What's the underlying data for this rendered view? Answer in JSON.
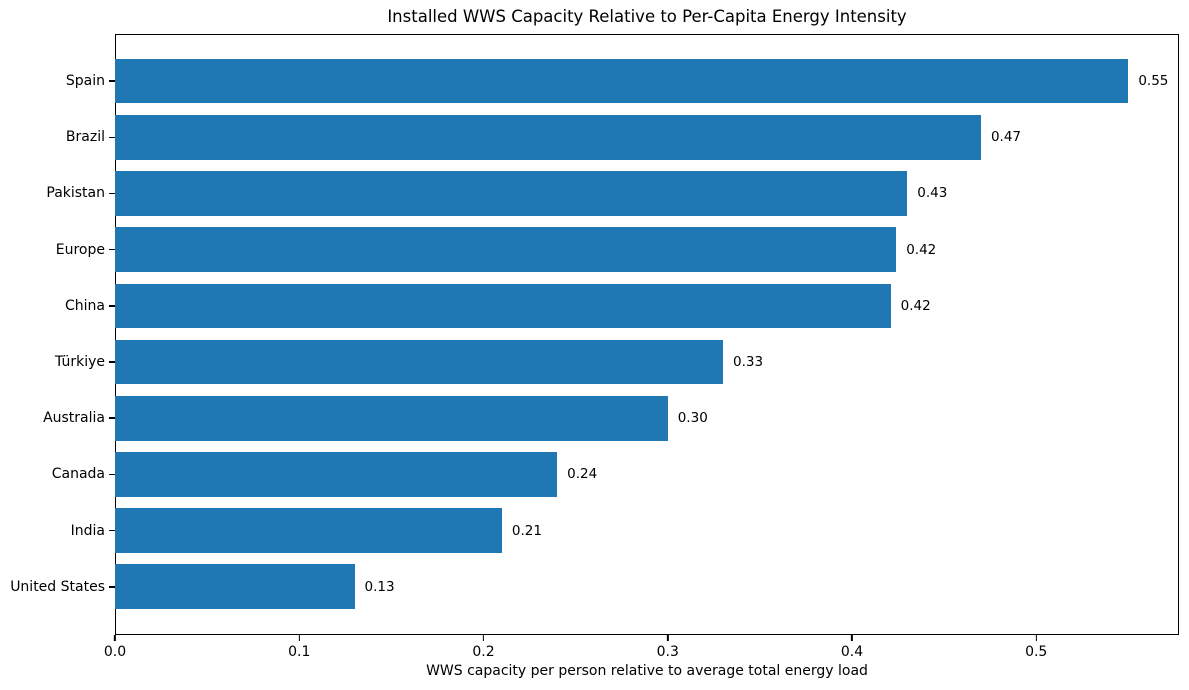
{
  "title": "Installed WWS Capacity Relative to Per-Capita Energy Intensity",
  "colors": {
    "bar": "#1f77b4",
    "text": "#000000",
    "background": "#ffffff",
    "axis": "#000000"
  },
  "chart_data": {
    "type": "bar",
    "orientation": "horizontal",
    "title": "Installed WWS Capacity Relative to Per-Capita Energy Intensity",
    "xlabel": "WWS capacity per person relative to average total energy load",
    "ylabel": "",
    "categories": [
      "Spain",
      "Brazil",
      "Pakistan",
      "Europe",
      "China",
      "Türkiye",
      "Australia",
      "Canada",
      "India",
      "United States"
    ],
    "values": [
      0.55,
      0.47,
      0.43,
      0.424,
      0.421,
      0.33,
      0.3,
      0.24,
      0.21,
      0.13
    ],
    "value_labels": [
      "0.55",
      "0.47",
      "0.43",
      "0.42",
      "0.42",
      "0.33",
      "0.30",
      "0.24",
      "0.21",
      "0.13"
    ],
    "xlim": [
      0,
      0.5775
    ],
    "xticks": [
      0.0,
      0.1,
      0.2,
      0.3,
      0.4,
      0.5
    ],
    "xtick_labels": [
      "0.0",
      "0.1",
      "0.2",
      "0.3",
      "0.4",
      "0.5"
    ],
    "bar_color": "#1f77b4",
    "grid": false,
    "legend": null
  }
}
